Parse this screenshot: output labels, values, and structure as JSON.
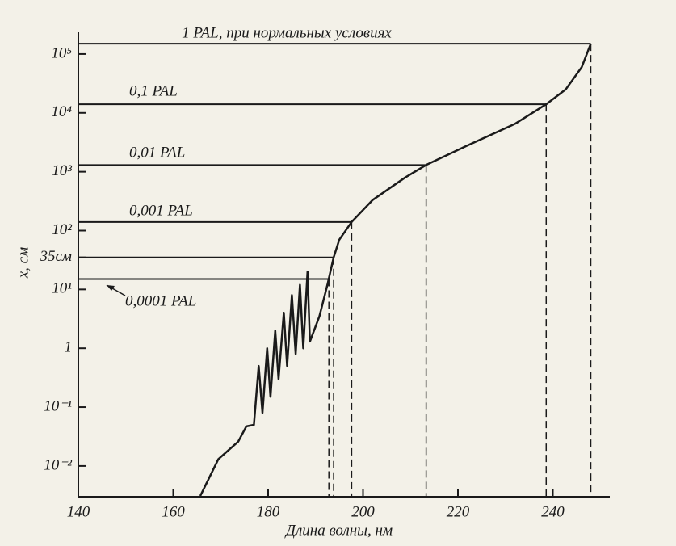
{
  "chart_data": {
    "type": "line",
    "x_label": "Длина волны, нм",
    "y_label": "x, см",
    "log_y": true,
    "xlim": [
      140,
      252
    ],
    "ylim": [
      0.003,
      200000
    ],
    "xticks": [
      140,
      160,
      180,
      200,
      220,
      240
    ],
    "yticks": [
      {
        "value": 0.01,
        "label": "10⁻²"
      },
      {
        "value": 0.1,
        "label": "10⁻¹"
      },
      1,
      {
        "value": 10,
        "label": "10¹"
      },
      {
        "value": 35,
        "label": "35см"
      },
      {
        "value": 100,
        "label": "10²"
      },
      {
        "value": 1000,
        "label": "10³"
      },
      {
        "value": 10000,
        "label": "10⁴"
      },
      {
        "value": 100000,
        "label": "10⁵"
      }
    ],
    "series": [
      {
        "color": "#1a1a1a",
        "x": [
          165.7,
          169.5,
          173.7,
          175.4,
          177,
          178,
          178.8,
          179.8,
          180.5,
          181.5,
          182.2,
          183.3,
          184,
          185,
          185.8,
          186.7,
          187.4,
          188.3,
          188.8,
          190.8,
          192.5,
          193.8,
          195,
          197.6,
          202,
          208.9,
          213.3,
          222,
          232,
          238.6,
          242.7,
          246.1,
          248
        ],
        "values": [
          0.0031,
          0.013,
          0.026,
          0.047,
          0.05,
          0.5,
          0.08,
          1,
          0.15,
          2,
          0.3,
          4,
          0.5,
          8,
          0.8,
          12,
          1,
          20,
          1.3,
          3.5,
          12,
          35,
          70,
          140,
          330,
          800,
          1300,
          2800,
          6500,
          14000,
          25000,
          60000,
          150000
        ]
      }
    ],
    "levels": [
      {
        "label": "1 PAL, при нормальных условиях",
        "y": 150000,
        "x": 248
      },
      {
        "label": "0,1 PAL",
        "y": 14000,
        "x": 238.6
      },
      {
        "label": "0,01 PAL",
        "y": 1300,
        "x": 213.3
      },
      {
        "label": "0,001 PAL",
        "y": 140,
        "x": 197.6
      },
      {
        "y": 35,
        "x": 193.8
      },
      {
        "label": "0,0001 PAL",
        "y": 15,
        "x": 192.8
      }
    ]
  }
}
